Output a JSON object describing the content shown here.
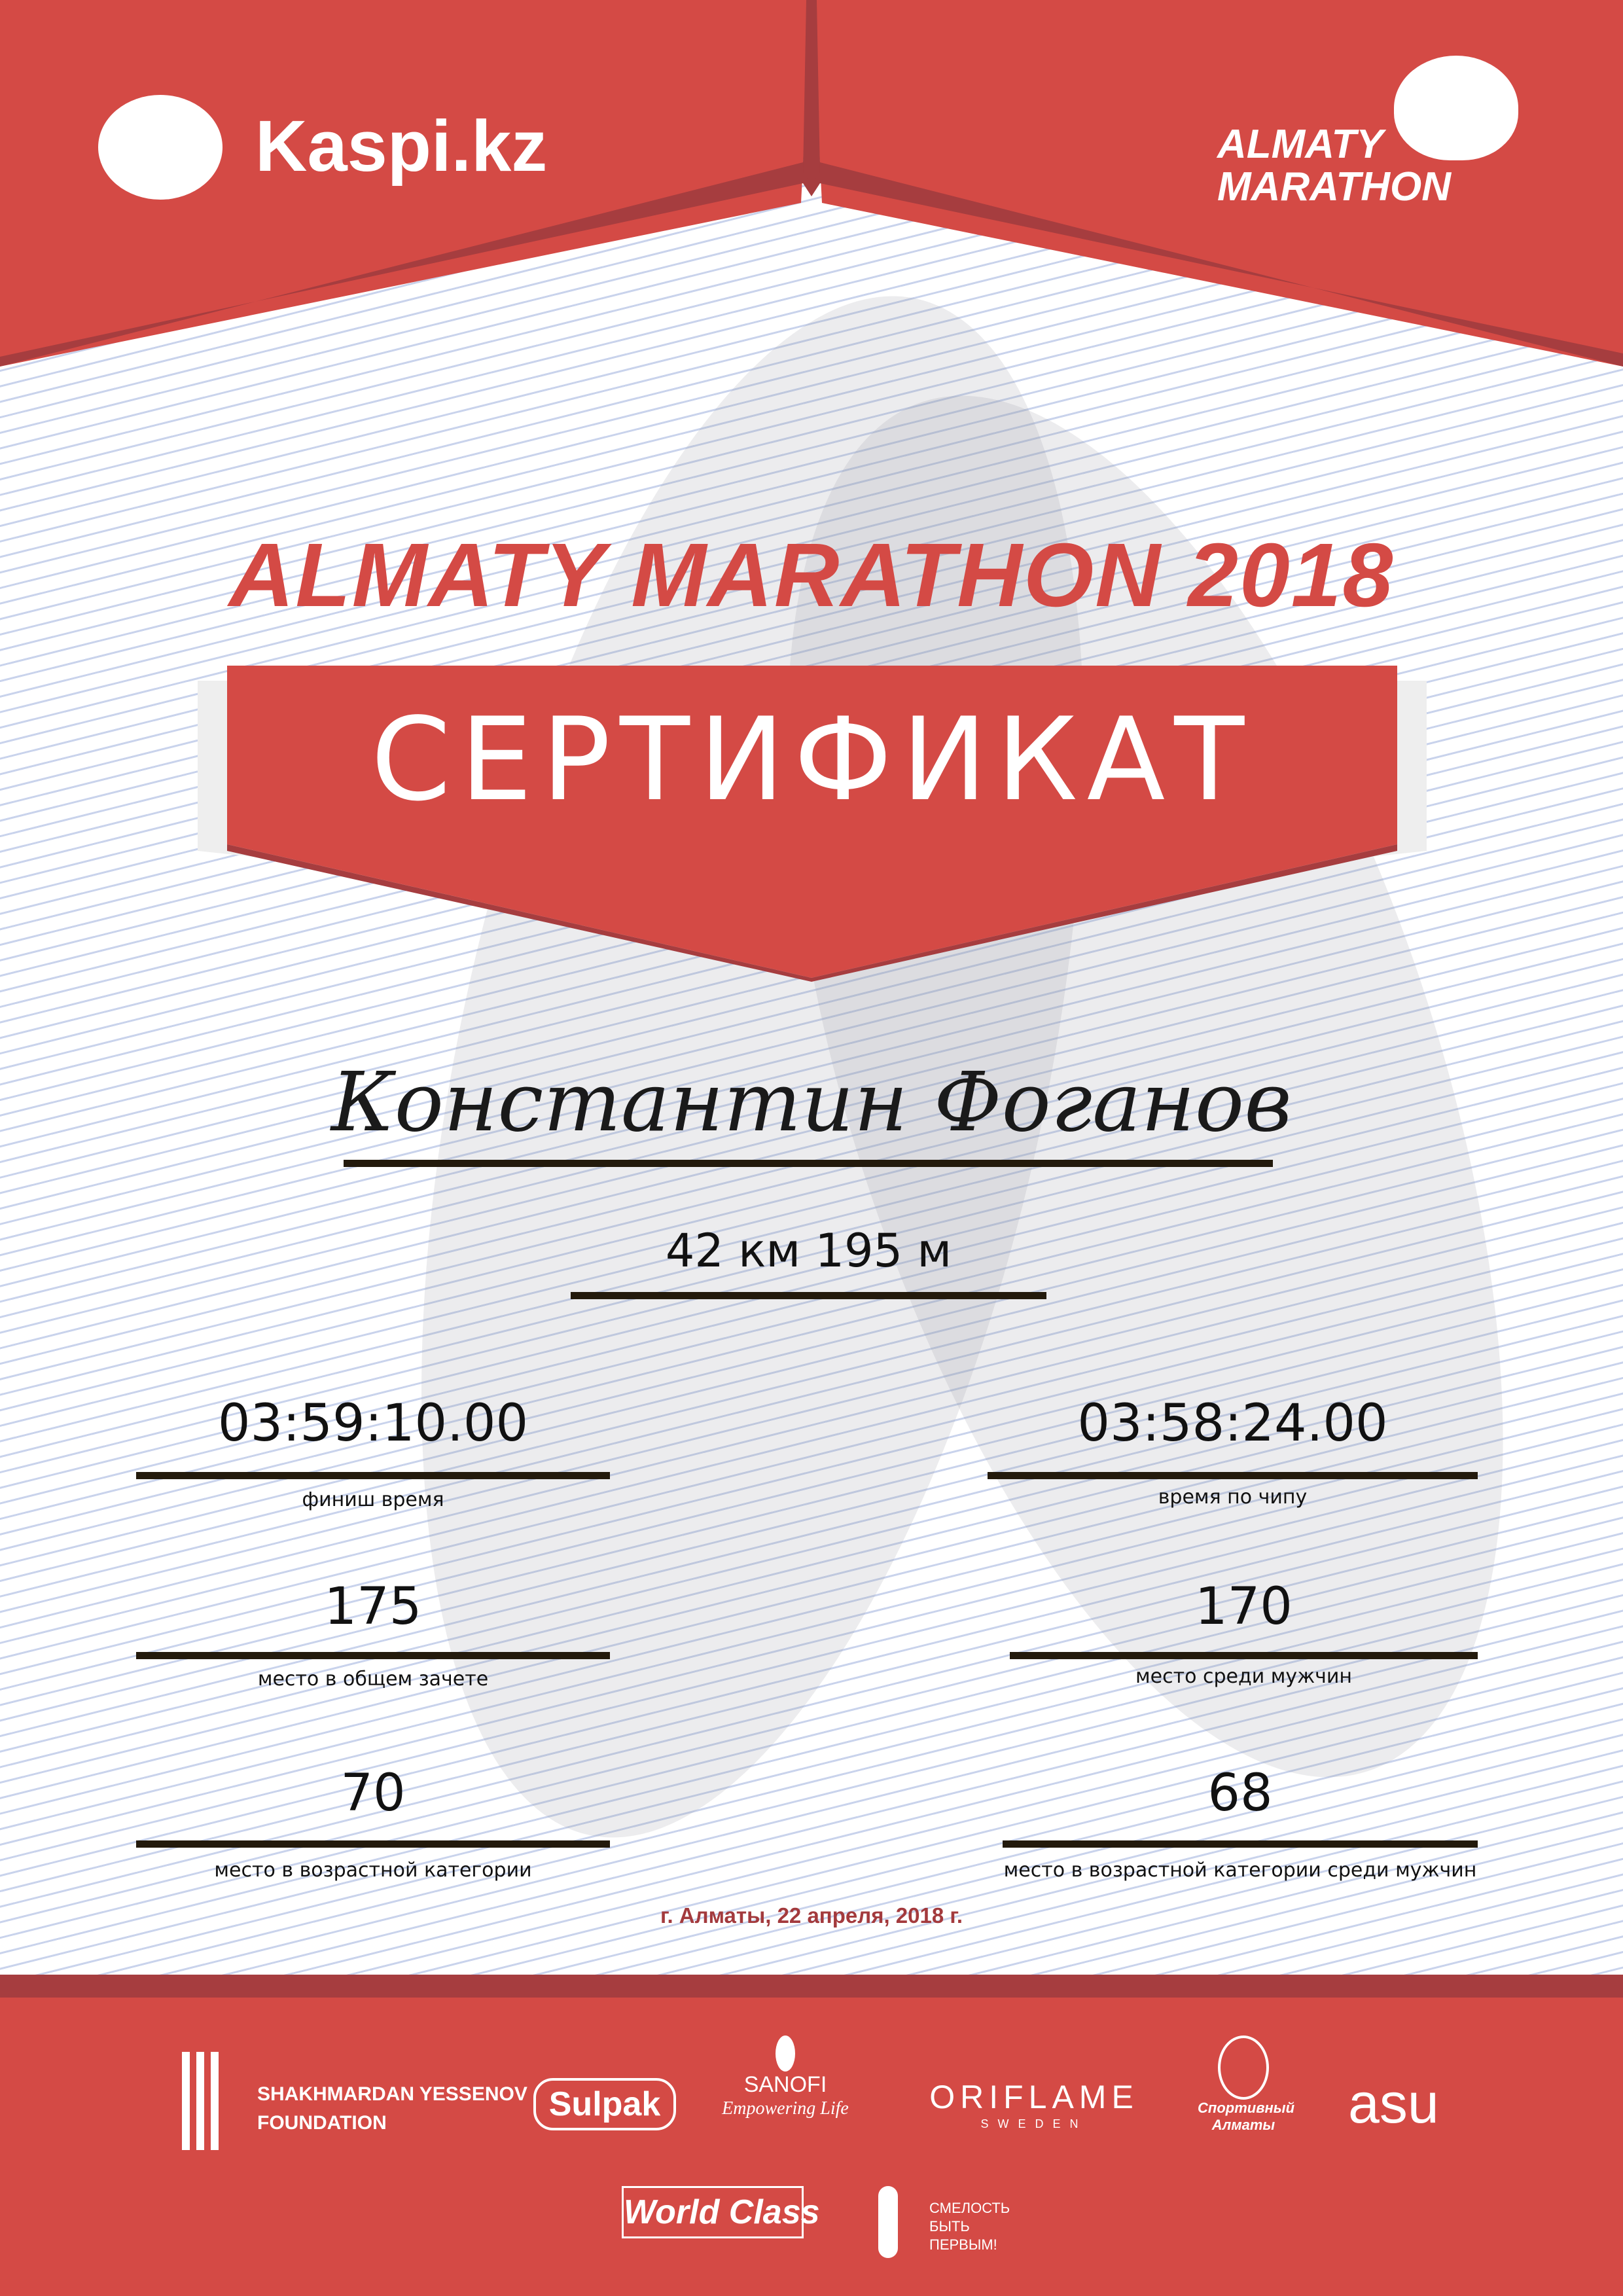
{
  "colors": {
    "brand_red": "#d44a45",
    "dark_red": "#a63d3f",
    "date_red": "#a33a3d",
    "line": "#231a0c"
  },
  "header": {
    "left_logo": {
      "icon": "kaspi-people-icon",
      "text": "Kaspi.kz"
    },
    "right_logo": {
      "icon": "runner-icon",
      "line1": "ALMATY",
      "line2": "MARATHON"
    }
  },
  "title": "ALMATY MARATHON 2018",
  "certificate_label": "СЕРТИФИКАТ",
  "participant_name": "Константин Фоганов",
  "distance": "42 км 195 м",
  "results": [
    {
      "value": "03:59:10.00",
      "label": "финиш время"
    },
    {
      "value": "03:58:24.00",
      "label": "время по чипу"
    },
    {
      "value": "175",
      "label": "место в общем зачете"
    },
    {
      "value": "170",
      "label": "место среди мужчин"
    },
    {
      "value": "70",
      "label": "место в возрастной категории"
    },
    {
      "value": "68",
      "label": "место в возрастной категории среди мужчин"
    }
  ],
  "date": "г. Алматы, 22 апреля, 2018 г.",
  "sponsors": {
    "yessenov": {
      "line1": "SHAKHMARDAN YESSENOV",
      "line2": "FOUNDATION"
    },
    "sulpak": "Sulpak",
    "sanofi": {
      "name": "SANOFI",
      "tagline": "Empowering Life"
    },
    "oriflame": {
      "name": "ORIFLAME",
      "sub": "SWEDEN"
    },
    "sport_almaty": "Спортивный Алматы",
    "asu": "asu",
    "worldclass": "World Class",
    "fund": {
      "line1": "СМЕЛОСТЬ",
      "line2": "БЫТЬ",
      "line3": "ПЕРВЫМ!"
    }
  }
}
